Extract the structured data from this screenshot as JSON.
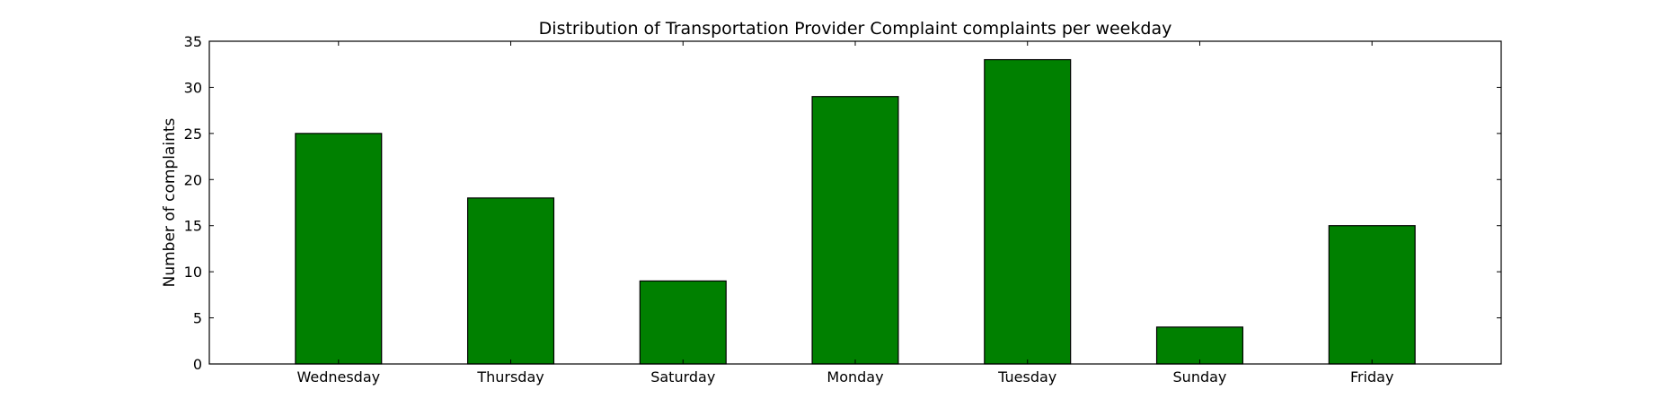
{
  "chart_data": {
    "type": "bar",
    "title": "Distribution of  Transportation Provider Complaint complaints per weekday",
    "xlabel": "",
    "ylabel": "Number of complaints",
    "categories": [
      "Wednesday",
      "Thursday",
      "Saturday",
      "Monday",
      "Tuesday",
      "Sunday",
      "Friday"
    ],
    "values": [
      25,
      18,
      9,
      29,
      33,
      4,
      15
    ],
    "ylim": [
      0,
      35
    ],
    "yticks": [
      0,
      5,
      10,
      15,
      20,
      25,
      30,
      35
    ],
    "grid": false,
    "legend": "none",
    "colors": {
      "bar": "#008000",
      "bar_edge": "#000000",
      "axes": "#000000"
    }
  }
}
